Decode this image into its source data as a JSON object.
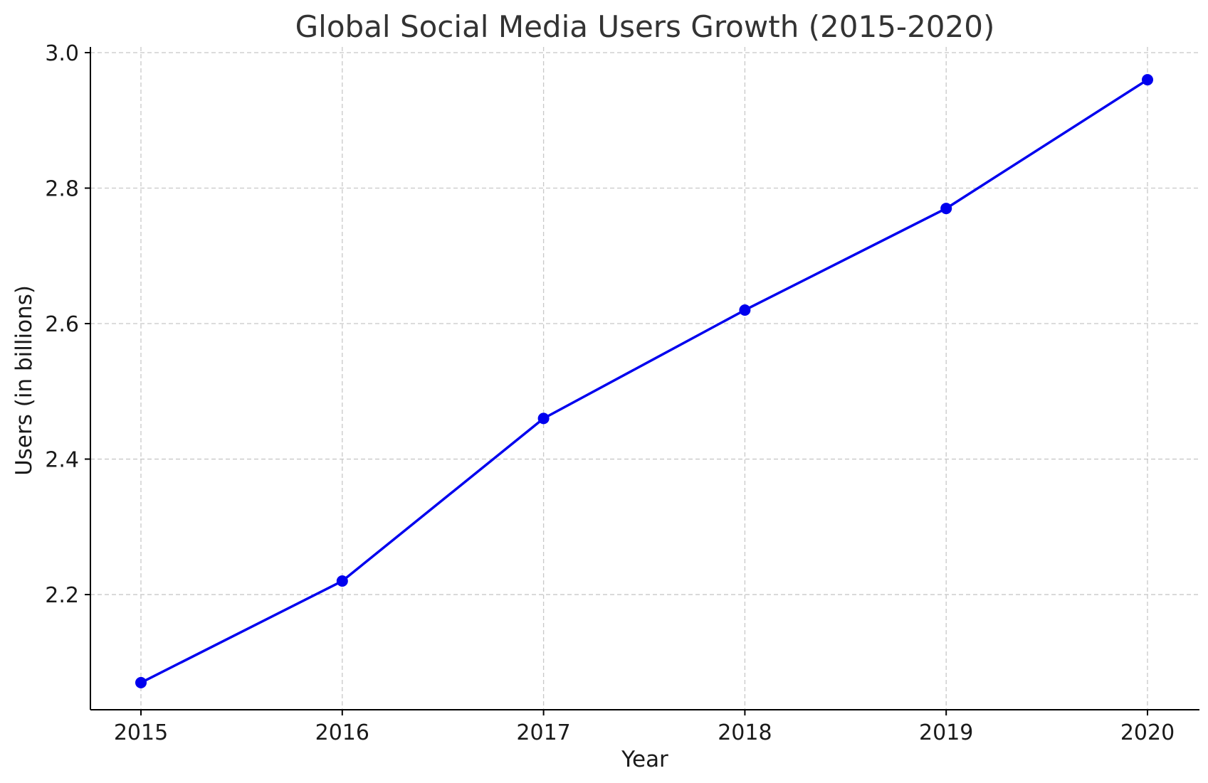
{
  "chart_data": {
    "type": "line",
    "title": "Global Social Media Users Growth (2015-2020)",
    "xlabel": "Year",
    "ylabel": "Users (in billions)",
    "x": [
      "2015",
      "2016",
      "2017",
      "2018",
      "2019",
      "2020"
    ],
    "series": [
      {
        "values": [
          2.07,
          2.22,
          2.46,
          2.62,
          2.77,
          2.96
        ],
        "color": "#0000ee",
        "marker": "circle"
      }
    ],
    "ylim": [
      2.03,
      3.0
    ],
    "yticks": [
      "2.2",
      "2.4",
      "2.6",
      "2.8",
      "3.0"
    ],
    "grid": true,
    "grid_style": "dashed",
    "legend": "none"
  }
}
